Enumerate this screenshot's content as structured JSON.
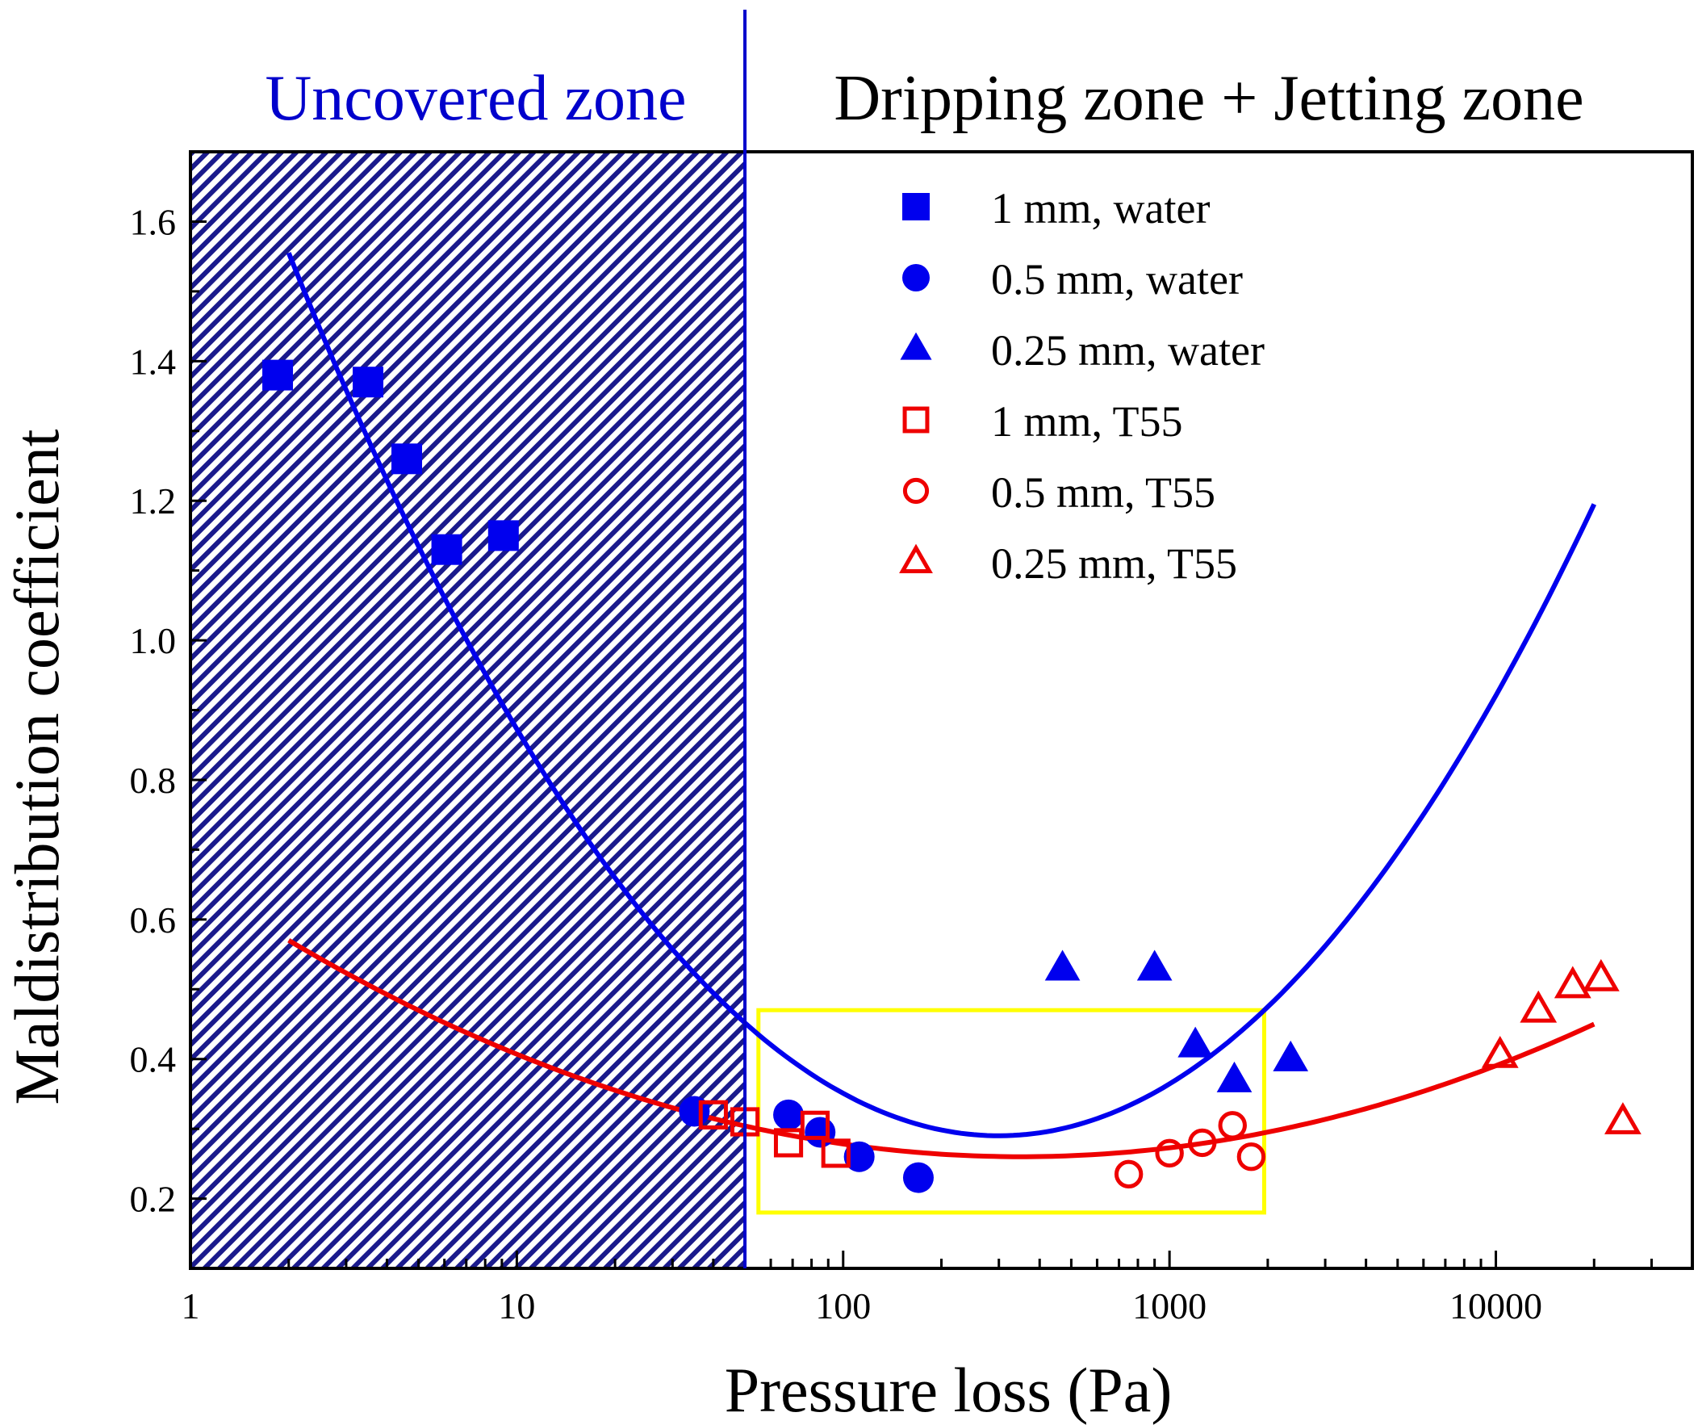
{
  "chart_data": {
    "type": "scatter",
    "title": "",
    "xlabel": "Pressure loss (Pa)",
    "ylabel": "Maldistribution coefficient",
    "xscale": "log",
    "xlim": [
      1,
      40000
    ],
    "ylim": [
      0.1,
      1.7
    ],
    "xticks": [
      1,
      10,
      100,
      1000,
      10000
    ],
    "xtick_labels": [
      "1",
      "10",
      "100",
      "1000",
      "10000"
    ],
    "yticks": [
      0.2,
      0.4,
      0.6,
      0.8,
      1.0,
      1.2,
      1.4,
      1.6
    ],
    "ytick_labels": [
      "0.2",
      "0.4",
      "0.6",
      "0.8",
      "1.0",
      "1.2",
      "1.4",
      "1.6"
    ],
    "grid": false,
    "legend_position": "top-right",
    "zones": [
      {
        "label": "Uncovered zone",
        "x_range": [
          1,
          50
        ],
        "color": "#0000cc",
        "fill": "hatched"
      },
      {
        "label": "Dripping zone + Jetting zone",
        "x_range": [
          50,
          40000
        ],
        "color": "#000000"
      }
    ],
    "zone_boundary_x": 50,
    "highlight_box": {
      "x_range": [
        55,
        1950
      ],
      "y_range": [
        0.18,
        0.47
      ],
      "color": "#ffff00"
    },
    "series": [
      {
        "name": "1 mm, water",
        "marker": "square",
        "filled": true,
        "color": "#0000ee",
        "x": [
          1.85,
          3.5,
          4.6,
          6.1,
          9.1
        ],
        "y": [
          1.38,
          1.37,
          1.26,
          1.13,
          1.15
        ]
      },
      {
        "name": "0.5 mm, water",
        "marker": "circle",
        "filled": true,
        "color": "#0000ee",
        "x": [
          35,
          68,
          85,
          112,
          170
        ],
        "y": [
          0.325,
          0.32,
          0.295,
          0.26,
          0.23
        ]
      },
      {
        "name": "0.25 mm, water",
        "marker": "triangle",
        "filled": true,
        "color": "#0000ee",
        "x": [
          470,
          900,
          1200,
          1580,
          2350
        ],
        "y": [
          0.53,
          0.53,
          0.42,
          0.37,
          0.4
        ]
      },
      {
        "name": "1 mm, T55",
        "marker": "square",
        "filled": false,
        "color": "#ee0000",
        "x": [
          40,
          50,
          68,
          82,
          95
        ],
        "y": [
          0.32,
          0.31,
          0.28,
          0.305,
          0.265
        ]
      },
      {
        "name": "0.5 mm, T55",
        "marker": "circle",
        "filled": false,
        "color": "#ee0000",
        "x": [
          750,
          1000,
          1260,
          1560,
          1780
        ],
        "y": [
          0.235,
          0.265,
          0.28,
          0.305,
          0.26
        ]
      },
      {
        "name": "0.25 mm, T55",
        "marker": "triangle",
        "filled": false,
        "color": "#ee0000",
        "x": [
          10300,
          13500,
          17200,
          21000,
          24500
        ],
        "y": [
          0.405,
          0.47,
          0.505,
          0.515,
          0.31
        ]
      }
    ],
    "fit_curves": [
      {
        "color": "#0000ee",
        "x_range": [
          2,
          20000
        ],
        "min_x": 300,
        "min_y": 0.29,
        "left_end_y": 1.555,
        "right_end_y": 1.195
      },
      {
        "color": "#ee0000",
        "x_range": [
          2,
          20000
        ],
        "min_x": 350,
        "min_y": 0.26,
        "left_end_y": 0.57,
        "right_end_y": 0.45
      }
    ]
  },
  "colors": {
    "water": "#0000ee",
    "t55": "#ee0000",
    "uncovered": "#0000cc",
    "box": "#ffff00"
  }
}
